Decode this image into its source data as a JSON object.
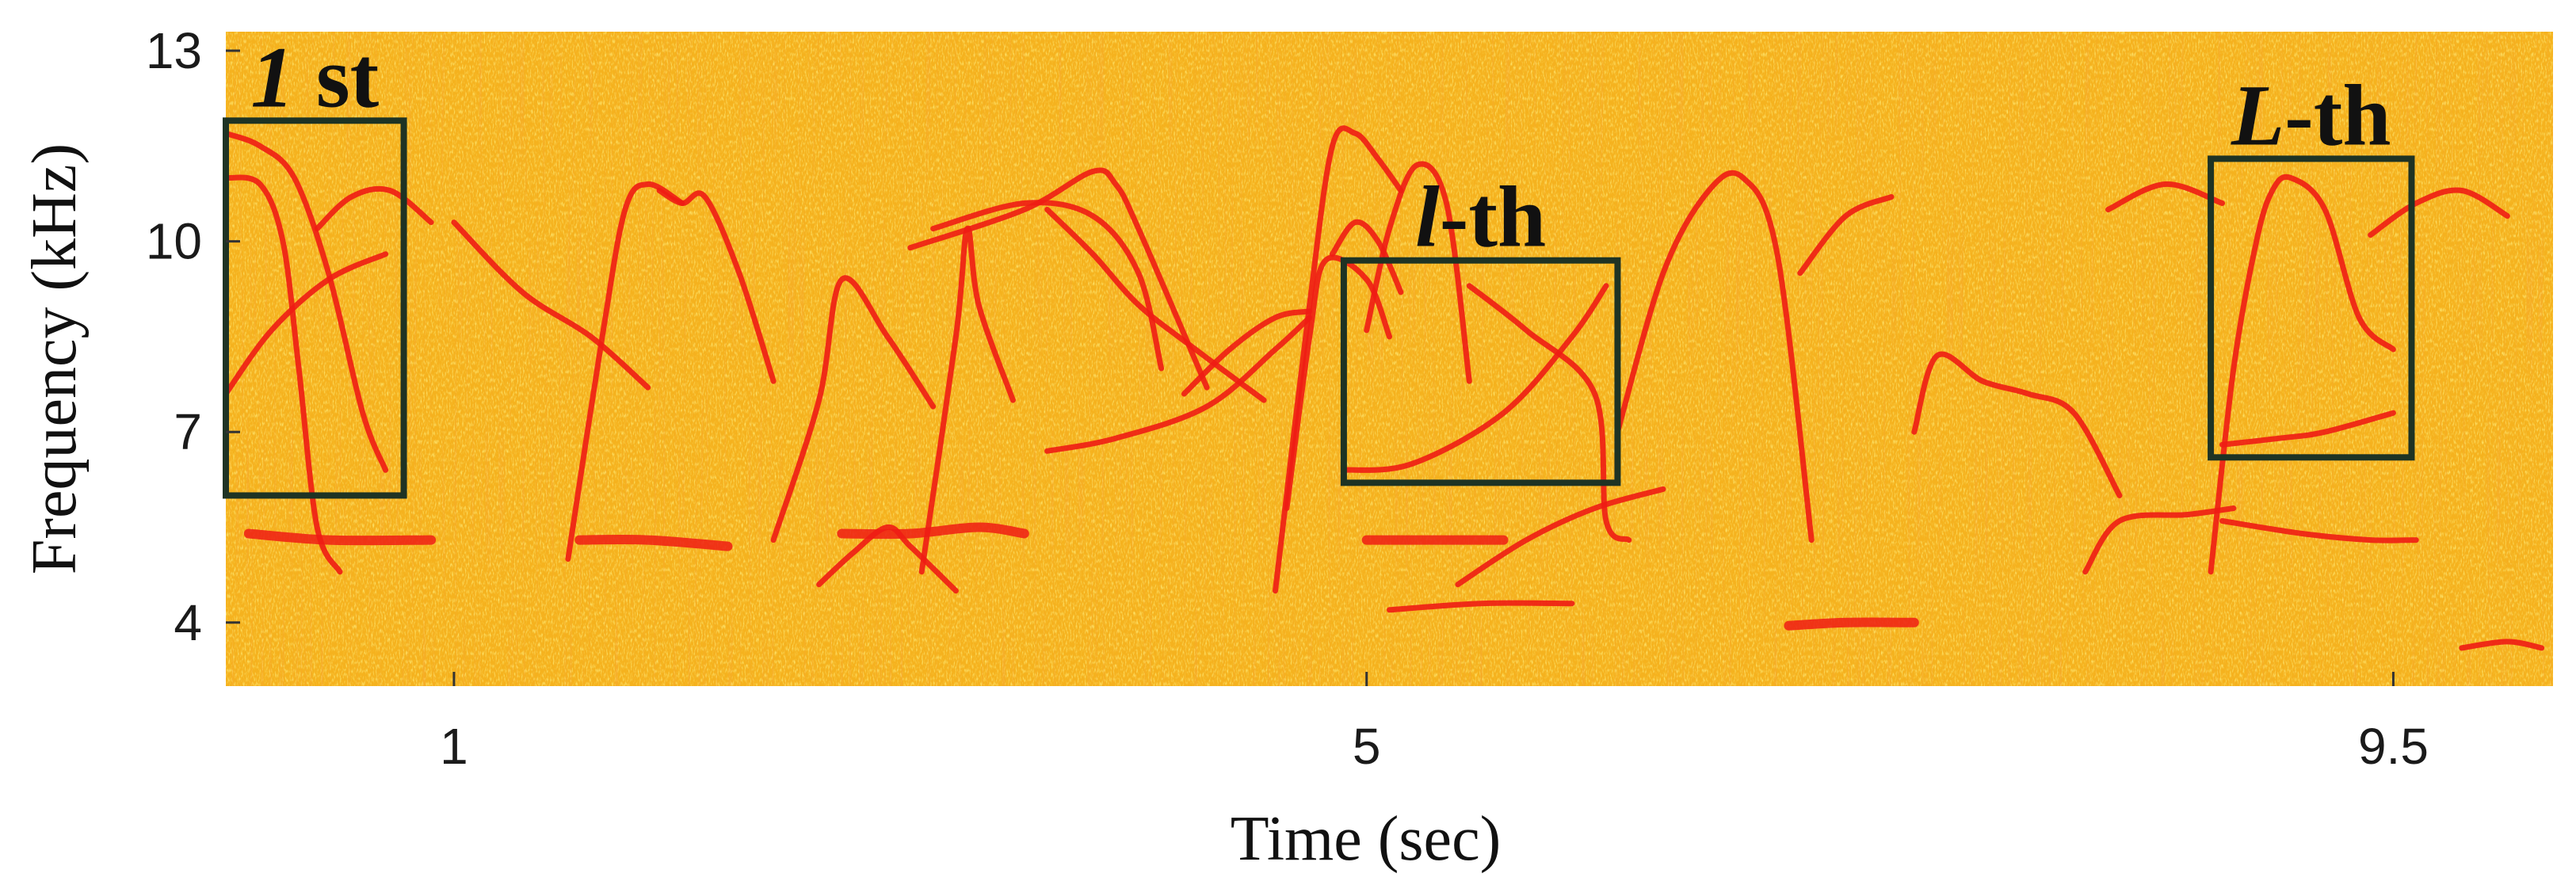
{
  "chart_data": {
    "type": "spectrogram",
    "xlabel": "Time (sec)",
    "ylabel": "Frequency (kHz)",
    "xlim": [
      0.0,
      10.2
    ],
    "ylim": [
      3.0,
      13.3
    ],
    "x_ticks": [
      1,
      5,
      9.5
    ],
    "x_tick_labels": [
      "1",
      "5",
      "9.5"
    ],
    "y_ticks": [
      4,
      7,
      10,
      13
    ],
    "y_tick_labels": [
      "4",
      "7",
      "10",
      "13"
    ],
    "colors": {
      "background": "#f5b21e",
      "speckle": "#ffd93a",
      "call": "#ee1c14",
      "box": "#1e3324"
    },
    "annotations": [
      {
        "label_main": "1",
        "label_suffix": " st",
        "t_start": 0.0,
        "t_end": 0.78,
        "f_low": 6.0,
        "f_high": 11.9
      },
      {
        "label_main": "l",
        "label_suffix": "-th",
        "t_start": 4.9,
        "t_end": 6.1,
        "f_low": 6.2,
        "f_high": 9.7
      },
      {
        "label_main": "L",
        "label_suffix": "-th",
        "t_start": 8.7,
        "t_end": 9.58,
        "f_low": 6.6,
        "f_high": 11.3
      }
    ],
    "traces": [
      {
        "t": [
          0.0,
          0.15,
          0.3,
          0.45,
          0.6,
          0.7
        ],
        "f": [
          11.7,
          11.5,
          11.0,
          9.5,
          7.3,
          6.4
        ]
      },
      {
        "t": [
          0.0,
          0.15,
          0.25,
          0.32,
          0.4,
          0.5
        ],
        "f": [
          11.0,
          10.9,
          10.0,
          8.0,
          5.5,
          4.8
        ]
      },
      {
        "t": [
          0.0,
          0.2,
          0.45,
          0.7
        ],
        "f": [
          7.6,
          8.6,
          9.4,
          9.8
        ]
      },
      {
        "t": [
          0.4,
          0.55,
          0.72,
          0.9
        ],
        "f": [
          10.2,
          10.7,
          10.8,
          10.3
        ]
      },
      {
        "t": [
          1.0,
          1.3,
          1.6,
          1.85
        ],
        "f": [
          10.3,
          9.2,
          8.5,
          7.7
        ]
      },
      {
        "t": [
          1.5,
          1.65,
          1.75,
          1.85,
          2.0
        ],
        "f": [
          5.0,
          8.5,
          10.5,
          10.9,
          10.6
        ]
      },
      {
        "t": [
          1.9,
          2.0,
          2.1,
          2.25,
          2.4
        ],
        "f": [
          10.8,
          10.6,
          10.7,
          9.5,
          7.8
        ]
      },
      {
        "t": [
          2.4,
          2.6,
          2.7,
          2.9,
          3.1
        ],
        "f": [
          5.3,
          7.5,
          9.4,
          8.5,
          7.4
        ]
      },
      {
        "t": [
          2.6,
          2.75,
          2.9,
          3.0,
          3.2
        ],
        "f": [
          4.6,
          5.1,
          5.5,
          5.2,
          4.5
        ]
      },
      {
        "t": [
          3.0,
          3.5,
          3.8,
          3.9,
          4.0,
          4.3
        ],
        "f": [
          9.9,
          10.5,
          11.1,
          10.9,
          10.2,
          7.7
        ]
      },
      {
        "t": [
          3.05,
          3.2,
          3.25,
          3.3,
          3.45
        ],
        "f": [
          4.8,
          8.5,
          10.2,
          9.0,
          7.5
        ]
      },
      {
        "t": [
          3.1,
          3.5,
          3.8,
          4.0,
          4.1
        ],
        "f": [
          10.2,
          10.6,
          10.4,
          9.5,
          8.0
        ]
      },
      {
        "t": [
          3.6,
          3.8,
          4.0,
          4.25,
          4.55
        ],
        "f": [
          10.5,
          9.8,
          9.0,
          8.3,
          7.5
        ]
      },
      {
        "t": [
          3.6,
          3.9,
          4.3,
          4.6,
          4.75
        ],
        "f": [
          6.7,
          6.9,
          7.4,
          8.3,
          8.8
        ]
      },
      {
        "t": [
          4.2,
          4.4,
          4.6,
          4.75
        ],
        "f": [
          7.6,
          8.3,
          8.8,
          8.9
        ]
      },
      {
        "t": [
          4.6,
          4.75,
          4.85,
          4.95,
          5.05,
          5.15
        ],
        "f": [
          4.5,
          9.0,
          11.5,
          11.7,
          11.3,
          10.8
        ]
      },
      {
        "t": [
          4.85,
          4.95,
          5.05,
          5.15
        ],
        "f": [
          9.8,
          10.3,
          10.0,
          9.2
        ]
      },
      {
        "t": [
          4.65,
          4.75,
          4.82,
          5.0,
          5.1
        ],
        "f": [
          5.8,
          8.5,
          9.7,
          9.4,
          8.5
        ]
      },
      {
        "t": [
          5.0,
          5.1,
          5.22,
          5.35,
          5.45
        ],
        "f": [
          8.6,
          10.2,
          11.2,
          10.6,
          7.8
        ]
      },
      {
        "t": [
          5.45,
          5.7,
          6.0,
          6.05,
          6.15
        ],
        "f": [
          9.3,
          8.6,
          7.6,
          5.6,
          5.3
        ]
      },
      {
        "t": [
          4.9,
          5.2,
          5.6,
          5.9,
          6.05
        ],
        "f": [
          6.4,
          6.5,
          7.3,
          8.5,
          9.3
        ]
      },
      {
        "t": [
          5.1,
          5.5,
          5.9
        ],
        "f": [
          4.2,
          4.3,
          4.3
        ]
      },
      {
        "t": [
          5.4,
          5.7,
          6.0,
          6.3
        ],
        "f": [
          4.6,
          5.3,
          5.8,
          6.1
        ]
      },
      {
        "t": [
          6.1,
          6.3,
          6.5,
          6.65,
          6.8,
          6.95
        ],
        "f": [
          7.0,
          9.5,
          10.8,
          11.0,
          9.8,
          5.3
        ]
      },
      {
        "t": [
          6.9,
          7.1,
          7.3
        ],
        "f": [
          9.5,
          10.4,
          10.7
        ]
      },
      {
        "t": [
          7.4,
          7.5,
          7.7,
          7.9,
          8.1,
          8.3
        ],
        "f": [
          7.0,
          8.2,
          7.8,
          7.6,
          7.3,
          6.0
        ]
      },
      {
        "t": [
          8.15,
          8.3,
          8.6,
          8.8
        ],
        "f": [
          4.8,
          5.6,
          5.7,
          5.8
        ]
      },
      {
        "t": [
          8.25,
          8.5,
          8.75
        ],
        "f": [
          10.5,
          10.9,
          10.6
        ]
      },
      {
        "t": [
          8.7,
          8.8,
          8.9,
          8.97,
          9.05,
          9.2,
          9.35,
          9.5
        ],
        "f": [
          4.8,
          8.0,
          10.0,
          10.8,
          11.0,
          10.5,
          8.8,
          8.3
        ]
      },
      {
        "t": [
          8.75,
          9.0,
          9.2,
          9.5
        ],
        "f": [
          6.8,
          6.9,
          7.0,
          7.3
        ]
      },
      {
        "t": [
          8.75,
          9.1,
          9.4,
          9.6
        ],
        "f": [
          5.6,
          5.4,
          5.3,
          5.3
        ]
      },
      {
        "t": [
          9.4,
          9.6,
          9.8,
          10.0
        ],
        "f": [
          10.1,
          10.6,
          10.8,
          10.4
        ]
      },
      {
        "t": [
          9.8,
          10.0,
          10.15
        ],
        "f": [
          3.6,
          3.7,
          3.6
        ]
      }
    ],
    "segments": [
      {
        "t": [
          0.1,
          0.45,
          0.9
        ],
        "f": [
          5.4,
          5.3,
          5.3
        ]
      },
      {
        "t": [
          1.55,
          1.85,
          2.2
        ],
        "f": [
          5.3,
          5.3,
          5.2
        ]
      },
      {
        "t": [
          2.7,
          3.0,
          3.3,
          3.5
        ],
        "f": [
          5.4,
          5.4,
          5.5,
          5.4
        ]
      },
      {
        "t": [
          6.85,
          7.1,
          7.4
        ],
        "f": [
          3.95,
          4.0,
          4.0
        ]
      },
      {
        "t": [
          5.0,
          5.3,
          5.6
        ],
        "f": [
          5.3,
          5.3,
          5.3
        ]
      }
    ]
  }
}
